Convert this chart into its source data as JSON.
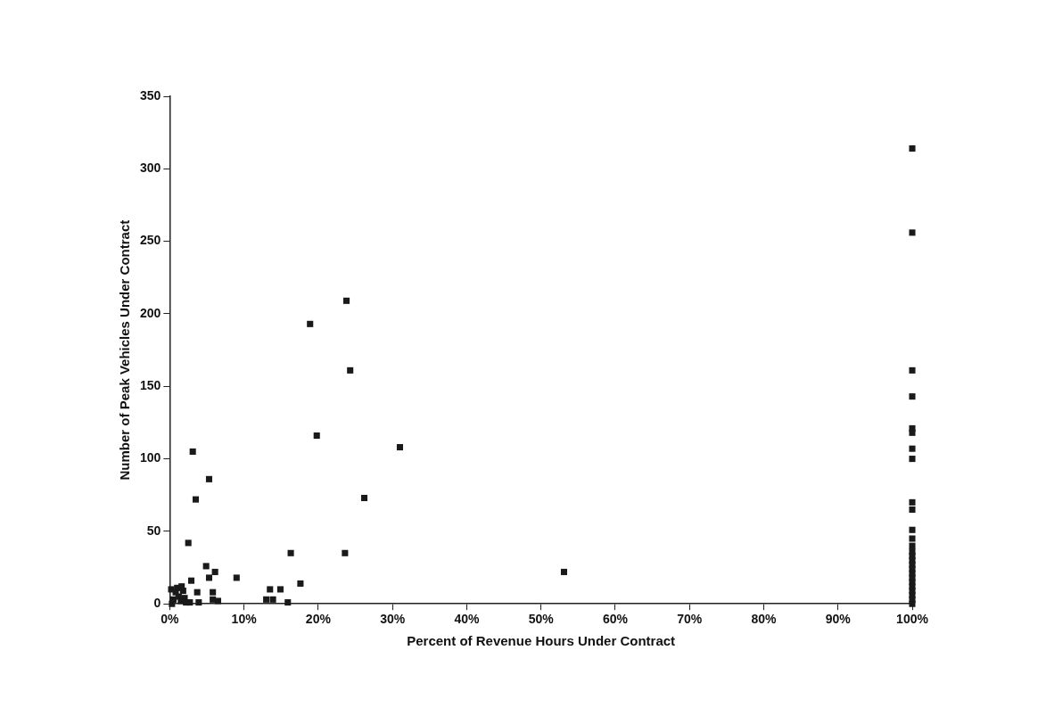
{
  "chart_data": {
    "type": "scatter",
    "xlabel": "Percent of Revenue Hours Under Contract",
    "ylabel": "Number of Peak Vehicles Under Contract",
    "marker": "square",
    "grid": false,
    "legend": false,
    "xlim": [
      0,
      100
    ],
    "ylim": [
      0,
      350
    ],
    "xticks": [
      {
        "value": 0,
        "label": "0%"
      },
      {
        "value": 10,
        "label": "10%"
      },
      {
        "value": 20,
        "label": "20%"
      },
      {
        "value": 30,
        "label": "30%"
      },
      {
        "value": 40,
        "label": "40%"
      },
      {
        "value": 50,
        "label": "50%"
      },
      {
        "value": 60,
        "label": "60%"
      },
      {
        "value": 70,
        "label": "70%"
      },
      {
        "value": 80,
        "label": "80%"
      },
      {
        "value": 90,
        "label": "90%"
      },
      {
        "value": 100,
        "label": "100%"
      }
    ],
    "yticks": [
      0,
      50,
      100,
      150,
      200,
      250,
      300,
      350
    ],
    "series": [
      {
        "color": "#1a1a1a",
        "x": [
          3.1,
          5.3,
          3.5,
          2.5,
          19.8,
          26.2,
          16.3,
          23.6,
          4.9,
          6.1,
          5.3,
          2.9,
          9.0,
          17.6,
          13.5,
          14.9,
          3.7,
          5.8,
          13,
          13.9,
          15.9,
          6.5,
          5.8,
          3.9,
          2.7,
          0.3,
          0.5,
          0.8,
          1,
          1.2,
          1.5,
          1.8,
          2,
          0.2,
          2.2,
          1.6,
          24.3,
          23.8,
          18.9,
          31,
          53.1,
          100,
          100,
          100,
          100,
          100,
          100,
          100,
          100,
          100,
          100,
          100,
          100,
          100,
          100,
          100,
          100,
          100,
          100,
          100,
          100,
          100,
          100,
          100,
          100,
          100,
          100
        ],
        "values": [
          105,
          86,
          72,
          42,
          116,
          73,
          35,
          35,
          26,
          22,
          18,
          16,
          18,
          14,
          10,
          10,
          8,
          8,
          3,
          3,
          1,
          2,
          3,
          1,
          1,
          0,
          3,
          8,
          11,
          5,
          2,
          9,
          4,
          10,
          1,
          12,
          161,
          209,
          193,
          108,
          22,
          314,
          256,
          161,
          143,
          121,
          107,
          100,
          70,
          65,
          51,
          45,
          36,
          33,
          30,
          27,
          24,
          21,
          18,
          15,
          12,
          9,
          6,
          3,
          0,
          118,
          40
        ]
      }
    ]
  }
}
